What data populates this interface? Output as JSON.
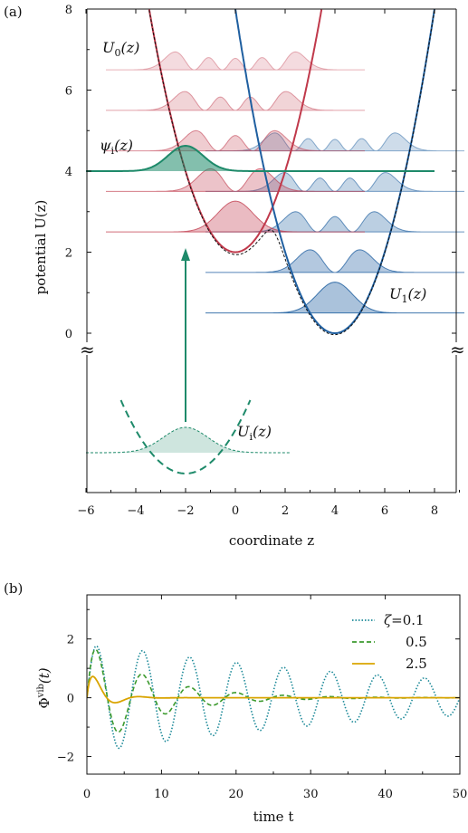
{
  "chart_data": [
    {
      "panel": "(a)",
      "type": "line",
      "xlabel": "coordinate z",
      "ylabel": "potential U(z)",
      "xlim": [
        -6,
        9
      ],
      "ylim": [
        0,
        8
      ],
      "xticks": [
        "−6",
        "−4",
        "−2",
        "0",
        "2",
        "4",
        "6",
        "8"
      ],
      "yticks": [
        "0",
        "2",
        "4",
        "6",
        "8"
      ],
      "break_marks": "≈",
      "labels": {
        "U0": "U",
        "U0_sub": "0",
        "U0_arg": "(z)",
        "U1": "U",
        "U1_sub": "1",
        "U1_arg": "(z)",
        "psi": "ψ",
        "psi_sub": "i",
        "psi_arg": "(z)",
        "Ui": "U",
        "Ui_sub": "i",
        "Ui_arg": "(z)"
      },
      "potentials": {
        "U0": {
          "form": "0.5*(z-0)^2+2",
          "min_z": 0,
          "min_U": 2,
          "color": "#c0394b"
        },
        "U1": {
          "form": "0.5*(z-4)^2",
          "min_z": 4,
          "min_U": 0,
          "color": "#1f5fa0"
        },
        "adiabatic": {
          "form": "lower envelope of U0 and U1 (smoothed)",
          "color": "#111111"
        },
        "Ui": {
          "form": "harmonic well centred at z=-2",
          "min_z": -2,
          "color": "#1e8a6a"
        }
      },
      "initial_wavepacket": {
        "center_z": -2,
        "level_U": 4,
        "color": "#1e8a6a"
      },
      "excitation_arrow": {
        "from": "Ui(z)",
        "to": "U0(z)",
        "at_z": -2
      },
      "U0_eigenstates": [
        {
          "n": 0,
          "E": 2.5
        },
        {
          "n": 1,
          "E": 3.5
        },
        {
          "n": 2,
          "E": 4.5
        },
        {
          "n": 3,
          "E": 5.5
        },
        {
          "n": 4,
          "E": 6.5
        }
      ],
      "U1_eigenstates": [
        {
          "n": 0,
          "E": 0.5
        },
        {
          "n": 1,
          "E": 1.5
        },
        {
          "n": 2,
          "E": 2.5
        },
        {
          "n": 3,
          "E": 3.5
        },
        {
          "n": 4,
          "E": 4.5
        }
      ]
    },
    {
      "panel": "(b)",
      "type": "line",
      "xlabel": "time t",
      "ylabel": "Φ",
      "ylabel_sup": "vib",
      "ylabel_arg": "(t)",
      "xlim": [
        0,
        50
      ],
      "ylim": [
        -2.6,
        3.5
      ],
      "xticks": [
        "0",
        "10",
        "20",
        "30",
        "40",
        "50"
      ],
      "yticks": [
        "−2",
        "0",
        "2"
      ],
      "legend_position": "top-right",
      "legend_symbol": "ζ",
      "series": [
        {
          "name": "=0.1",
          "zeta": 0.1,
          "style": "dotted",
          "color": "#1d8a99",
          "model": "damped cosine, amplitude ≈1.9 at t≈1.2, period ≈6.3, slow decay (≈0.6 at t=50)"
        },
        {
          "name": "0.5",
          "zeta": 0.5,
          "style": "dashed",
          "color": "#3c9a2e",
          "model": "damped cosine, amplitude ≈1.9, period ≈6.3, faster decay"
        },
        {
          "name": "2.5",
          "zeta": 2.5,
          "style": "solid",
          "color": "#d9a400",
          "model": "peak ≈1.1 at t≈1, strongly damped"
        }
      ]
    }
  ],
  "colors": {
    "U0": "#c0394b",
    "U1": "#1f5fa0",
    "green": "#1e8a6a",
    "zeta01": "#1d8a99",
    "zeta05": "#3c9a2e",
    "zeta25": "#d9a400"
  }
}
